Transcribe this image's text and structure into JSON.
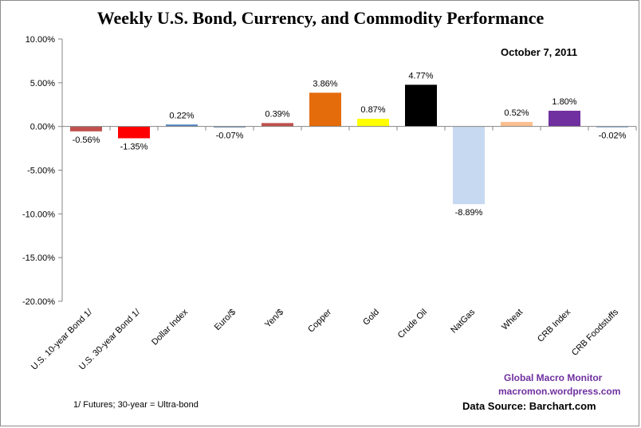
{
  "chart_data": {
    "type": "bar",
    "title": "Weekly U.S. Bond, Currency, and Commodity Performance",
    "date": "October 7, 2011",
    "categories": [
      "U.S. 10-year Bond 1/",
      "U.S. 30-year Bond 1/",
      "Dollar Index",
      "Euro/$",
      "Yen/$",
      "Copper",
      "Gold",
      "Crude Oil",
      "NatGas",
      "Wheat",
      "CRB Index",
      "CRB Foodstuffs"
    ],
    "values": [
      -0.56,
      -1.35,
      0.22,
      -0.07,
      0.39,
      3.86,
      0.87,
      4.77,
      -8.89,
      0.52,
      1.8,
      -0.02
    ],
    "data_labels": [
      "-0.56%",
      "-1.35%",
      "0.22%",
      "-0.07%",
      "0.39%",
      "3.86%",
      "0.87%",
      "4.77%",
      "-8.89%",
      "0.52%",
      "1.80%",
      "-0.02%"
    ],
    "colors": [
      "#c0504d",
      "#ff0000",
      "#4f81bd",
      "#1f497d",
      "#c0504d",
      "#e46c0a",
      "#ffff00",
      "#000000",
      "#c6d9f1",
      "#fac090",
      "#7030a0",
      "#4f81bd"
    ],
    "ylim": [
      -20,
      10
    ],
    "yticks": [
      10,
      5,
      0,
      -5,
      -10,
      -15,
      -20
    ],
    "ytick_labels": [
      "10.00%",
      "5.00%",
      "0.00%",
      "-5.00%",
      "-10.00%",
      "-15.00%",
      "-20.00%"
    ],
    "xlabel": "",
    "ylabel": "",
    "grid": false,
    "legend": "none"
  },
  "annotations": {
    "footnote": "1/  Futures; 30-year = Ultra-bond",
    "brand_name": "Global  Macro  Monitor",
    "brand_url": "macromon.wordpress.com",
    "data_source": "Data Source:  Barchart.com"
  }
}
